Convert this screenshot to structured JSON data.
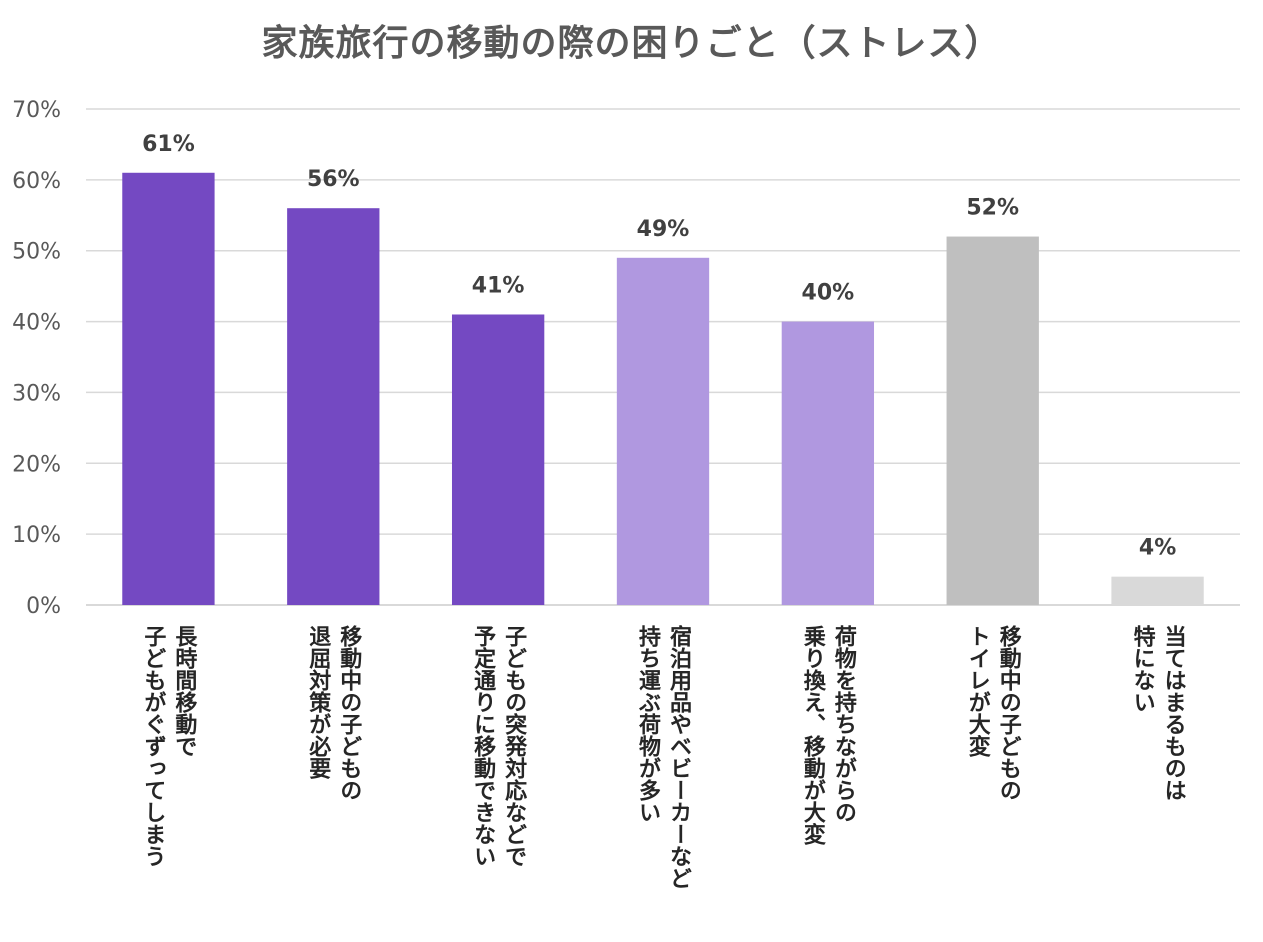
{
  "chart_data": {
    "type": "bar",
    "title": "家族旅行の移動の際の困りごと（ストレス）",
    "categories": [
      [
        "長時間移動で",
        "子どもがぐずってしまう"
      ],
      [
        "移動中の子どもの",
        "退屈対策が必要"
      ],
      [
        "子どもの突発対応などで",
        "予定通りに移動できない"
      ],
      [
        "宿泊用品やベビーカーなど",
        "持ち運ぶ荷物が多い"
      ],
      [
        "荷物を持ちながらの",
        "乗り換え、移動が大変"
      ],
      [
        "移動中の子どもの",
        "トイレが大変"
      ],
      [
        "当てはまるものは",
        "特にない"
      ]
    ],
    "values": [
      61,
      56,
      41,
      49,
      40,
      52,
      4
    ],
    "value_labels": [
      "61%",
      "56%",
      "41%",
      "49%",
      "40%",
      "52%",
      "4%"
    ],
    "bar_colors": [
      "#7449C2",
      "#7449C2",
      "#7449C2",
      "#B098E0",
      "#B098E0",
      "#BFBFBF",
      "#D9D9D9"
    ],
    "ylim": [
      0,
      70
    ],
    "yticks": [
      "0%",
      "10%",
      "20%",
      "30%",
      "40%",
      "50%",
      "60%",
      "70%"
    ],
    "grid": true,
    "gridline_color": "#D9D9D9",
    "xlabel": "",
    "ylabel": ""
  }
}
